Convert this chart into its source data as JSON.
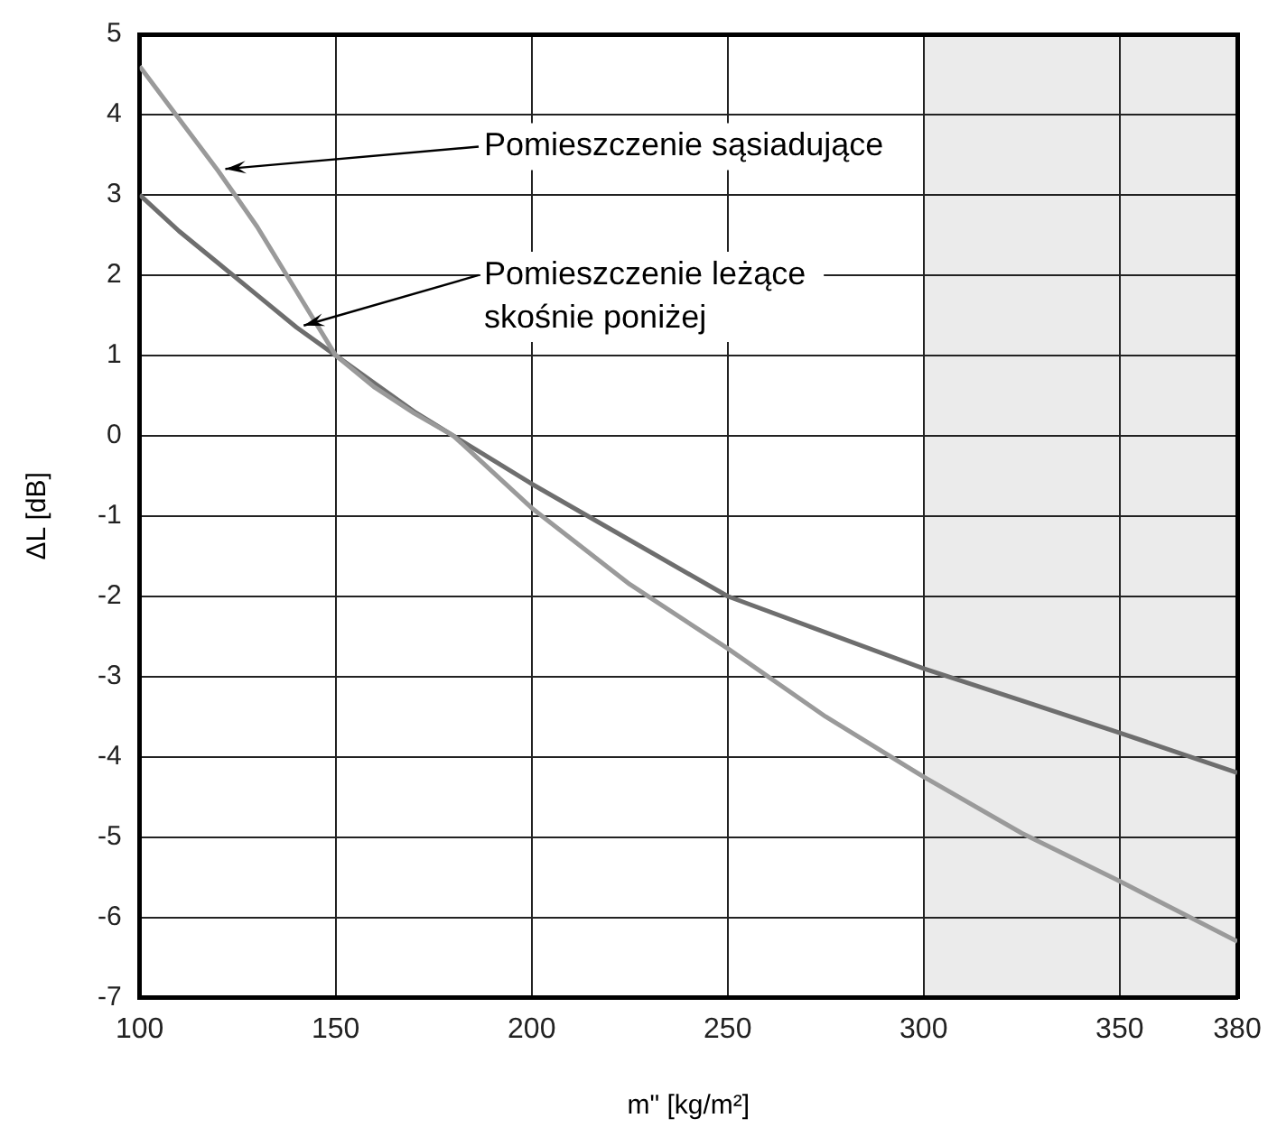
{
  "chart_data": {
    "type": "line",
    "xlabel": "m\" [kg/m²]",
    "ylabel": "ΔL [dB]",
    "x": [
      100,
      110,
      120,
      130,
      140,
      150,
      160,
      170,
      180,
      200,
      225,
      250,
      275,
      300,
      325,
      350,
      380
    ],
    "series": [
      {
        "color": "#9a9a9a",
        "values": [
          4.6,
          3.95,
          3.3,
          2.6,
          1.8,
          1.0,
          0.6,
          0.28,
          0,
          -0.9,
          -1.85,
          -2.65,
          -3.5,
          -4.25,
          -4.95,
          -5.55,
          -6.3
        ]
      },
      {
        "color": "#6e6e6e",
        "values": [
          3.0,
          2.55,
          2.15,
          1.75,
          1.35,
          1.0,
          0.65,
          0.3,
          0,
          -0.6,
          -1.3,
          -2.0,
          -2.45,
          -2.9,
          -3.3,
          -3.7,
          -4.2
        ]
      }
    ],
    "xlim": [
      100,
      380
    ],
    "xticks": [
      100,
      150,
      200,
      250,
      300,
      350,
      380
    ],
    "ylim": [
      -7,
      5
    ],
    "yticks": [
      -7,
      -6,
      -5,
      -4,
      -3,
      -2,
      -1,
      0,
      1,
      2,
      3,
      4,
      5
    ],
    "annotations": [
      {
        "text": "Pomieszczenie sąsiadujące",
        "x": 120,
        "y": 3.3
      },
      {
        "text": "Pomieszczenie leżące\nskośnie poniżej",
        "x": 140,
        "y": 1.35
      }
    ],
    "bands": [
      {
        "axis": "x",
        "from": 300,
        "to": 380,
        "color": "#ebebeb"
      }
    ],
    "grid": true,
    "legend": false,
    "marker": "none",
    "line_style": "solid"
  }
}
